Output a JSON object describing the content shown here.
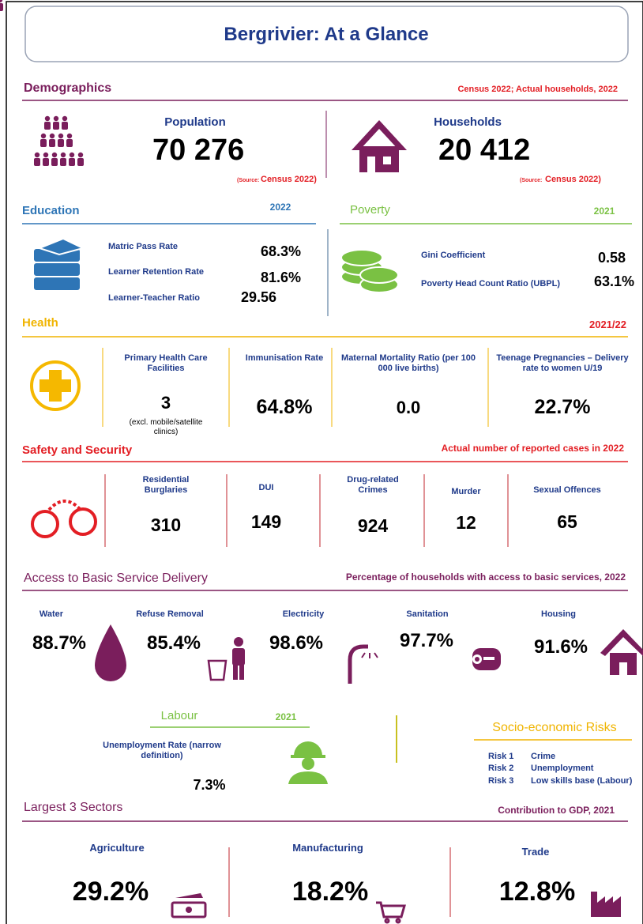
{
  "title": "Bergrivier: At a Glance",
  "demographics": {
    "heading": "Demographics",
    "note": "Census  2022; Actual households, 2022",
    "population": {
      "label": "Population",
      "value": "70 276",
      "source_label": "(Source:",
      "source": "Census  2022)"
    },
    "households": {
      "label": "Households",
      "value": "20 412",
      "source_label": "(Source:",
      "source": "Census  2022)"
    }
  },
  "education": {
    "heading": "Education",
    "year": "2022",
    "items": [
      {
        "label": "Matric Pass Rate",
        "value": "68.3%"
      },
      {
        "label": "Learner Retention Rate",
        "value": "81.6%"
      },
      {
        "label": "Learner-Teacher Ratio",
        "value": "29.56"
      }
    ]
  },
  "poverty": {
    "heading": "Poverty",
    "year": "2021",
    "items": [
      {
        "label": "Gini Coefficient",
        "value": "0.58"
      },
      {
        "label": "Poverty Head Count Ratio (UBPL)",
        "value": "63.1%"
      }
    ]
  },
  "health": {
    "heading": "Health",
    "year": "2021/22",
    "items": [
      {
        "label": "Primary Health Care Facilities",
        "value": "3",
        "note": "(excl. mobile/satellite clinics)"
      },
      {
        "label": "Immunisation Rate",
        "value": "64.8%"
      },
      {
        "label": "Maternal Mortality Ratio (per 100 000 live births)",
        "value": "0.0"
      },
      {
        "label": "Teenage Pregnancies – Delivery rate to women U/19",
        "value": "22.7%"
      }
    ]
  },
  "safety": {
    "heading": "Safety and Security",
    "note": "Actual number of reported cases in 2022",
    "items": [
      {
        "label": "Residential Burglaries",
        "value": "310"
      },
      {
        "label": "DUI",
        "value": "149"
      },
      {
        "label": "Drug-related Crimes",
        "value": "924"
      },
      {
        "label": "Murder",
        "value": "12"
      },
      {
        "label": "Sexual Offences",
        "value": "65"
      }
    ]
  },
  "services": {
    "heading": "Access to Basic Service Delivery",
    "note": "Percentage of households with access to basic services, 2022",
    "items": [
      {
        "label": "Water",
        "value": "88.7%"
      },
      {
        "label": "Refuse Removal",
        "value": "85.4%"
      },
      {
        "label": "Electricity",
        "value": "98.6%"
      },
      {
        "label": "Sanitation",
        "value": "97.7%"
      },
      {
        "label": "Housing",
        "value": "91.6%"
      }
    ]
  },
  "labour": {
    "heading": "Labour",
    "year": "2021",
    "label": "Unemployment Rate (narrow definition)",
    "value": "7.3%"
  },
  "risks": {
    "heading": "Socio-economic Risks",
    "items": [
      {
        "rank": "Risk 1",
        "risk": "Crime"
      },
      {
        "rank": "Risk 2",
        "risk": "Unemployment"
      },
      {
        "rank": "Risk 3",
        "risk": "Low skills base (Labour)"
      }
    ]
  },
  "sectors": {
    "heading": "Largest 3 Sectors",
    "note": "Contribution to GDP, 2021",
    "items": [
      {
        "label": "Agriculture",
        "value": "29.2%"
      },
      {
        "label": "Manufacturing",
        "value": "18.2%"
      },
      {
        "label": "Trade",
        "value": "12.8%"
      }
    ]
  }
}
